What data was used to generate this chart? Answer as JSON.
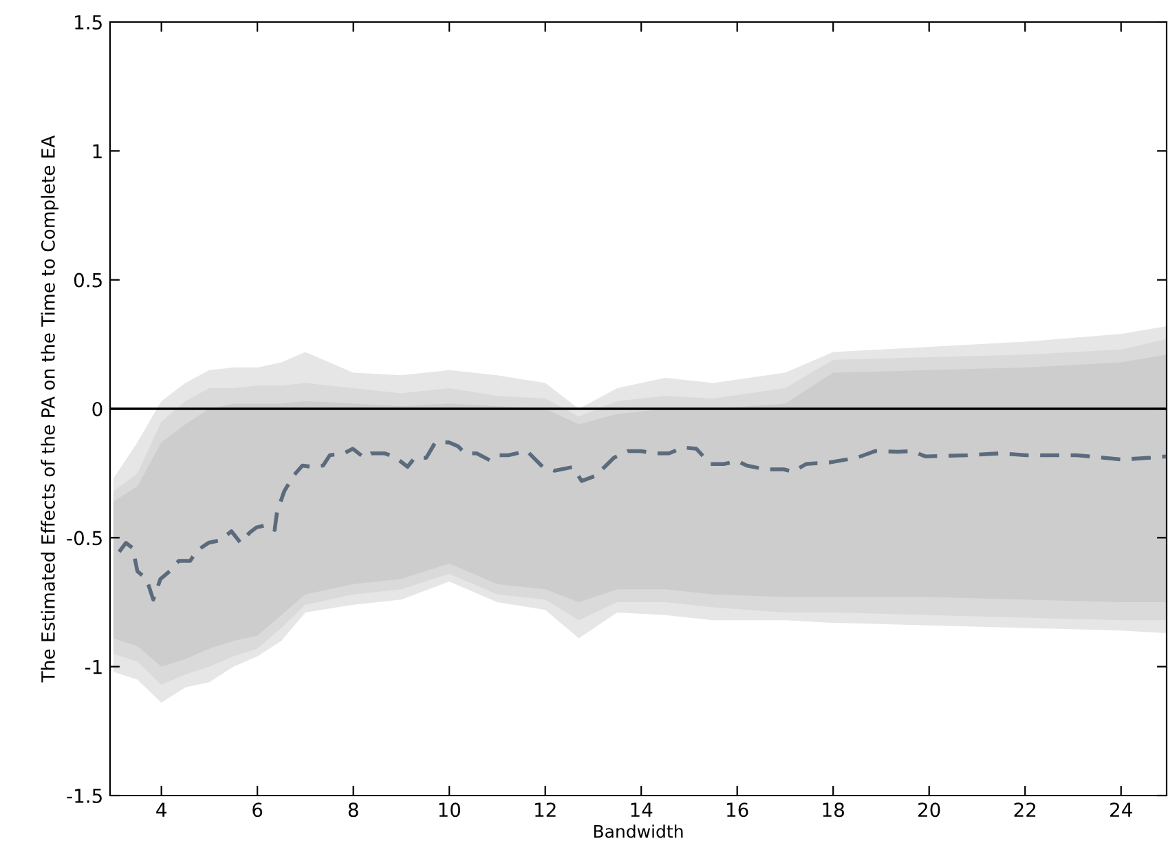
{
  "chart_data": {
    "type": "line",
    "xlabel": "Bandwidth",
    "ylabel": "The Estimated Effects of the PA on the Time to Complete EA",
    "xlim": [
      2.93,
      24.95
    ],
    "xticks": [
      4,
      6,
      8,
      10,
      12,
      14,
      16,
      18,
      20,
      22,
      24
    ],
    "ylim": [
      -1.5,
      1.5
    ],
    "yticks": [
      {
        "value": -1.5,
        "label": "-1.5"
      },
      {
        "value": -1,
        "label": "-1"
      },
      {
        "value": -0.5,
        "label": "-0.5"
      },
      0,
      0.5,
      1,
      1.5
    ],
    "grid": false,
    "line_style": "dashed",
    "marker": "none",
    "ref_lines": [
      {
        "axis": "y",
        "value": 0,
        "color": "#000000",
        "line_style": "solid"
      }
    ],
    "series": [
      {
        "type": "area",
        "color": "#e6e6e6",
        "values": [
          null,
          null,
          null,
          null,
          null,
          null,
          null,
          null,
          null,
          null,
          null,
          null,
          null,
          null,
          null,
          null,
          null,
          null,
          null,
          null,
          null,
          null,
          null,
          null
        ],
        "x": [
          3,
          3.5,
          4,
          4.5,
          5,
          5.5,
          6,
          6.5,
          7,
          8,
          9,
          10,
          11,
          12,
          12.7,
          13.5,
          14.5,
          15.5,
          17,
          18,
          20,
          22,
          24,
          24.95
        ],
        "lower": [
          -1.02,
          -1.05,
          -1.14,
          -1.08,
          -1.06,
          -1.0,
          -0.96,
          -0.9,
          -0.79,
          -0.76,
          -0.74,
          -0.67,
          -0.75,
          -0.78,
          -0.89,
          -0.79,
          -0.8,
          -0.82,
          -0.82,
          -0.83,
          -0.84,
          -0.85,
          -0.86,
          -0.87
        ],
        "upper": [
          -0.27,
          -0.13,
          0.03,
          0.1,
          0.15,
          0.16,
          0.16,
          0.18,
          0.22,
          0.14,
          0.13,
          0.15,
          0.13,
          0.1,
          0.0,
          0.08,
          0.12,
          0.1,
          0.14,
          0.22,
          0.24,
          0.26,
          0.29,
          0.32
        ]
      },
      {
        "type": "area",
        "color": "#dadada",
        "values": [
          null,
          null,
          null,
          null,
          null,
          null,
          null,
          null,
          null,
          null,
          null,
          null,
          null,
          null,
          null,
          null,
          null,
          null,
          null,
          null,
          null,
          null,
          null,
          null
        ],
        "x": [
          3,
          3.5,
          4,
          4.5,
          5,
          5.5,
          6,
          6.5,
          7,
          8,
          9,
          10,
          11,
          12,
          12.7,
          13.5,
          14.5,
          15.5,
          17,
          18,
          20,
          22,
          24,
          24.95
        ],
        "lower": [
          -0.95,
          -0.98,
          -1.07,
          -1.03,
          -1.0,
          -0.96,
          -0.93,
          -0.85,
          -0.76,
          -0.72,
          -0.7,
          -0.64,
          -0.72,
          -0.74,
          -0.82,
          -0.75,
          -0.75,
          -0.77,
          -0.79,
          -0.79,
          -0.8,
          -0.81,
          -0.82,
          -0.82
        ],
        "upper": [
          -0.32,
          -0.25,
          -0.05,
          0.03,
          0.08,
          0.08,
          0.09,
          0.09,
          0.1,
          0.08,
          0.06,
          0.08,
          0.05,
          0.04,
          -0.03,
          0.03,
          0.05,
          0.04,
          0.08,
          0.19,
          0.2,
          0.21,
          0.23,
          0.27
        ]
      },
      {
        "type": "area",
        "color": "#cdcdcd",
        "values": [
          null,
          null,
          null,
          null,
          null,
          null,
          null,
          null,
          null,
          null,
          null,
          null,
          null,
          null,
          null,
          null,
          null,
          null,
          null,
          null,
          null,
          null,
          null,
          null
        ],
        "x": [
          3,
          3.5,
          4,
          4.5,
          5,
          5.5,
          6,
          6.5,
          7,
          8,
          9,
          10,
          11,
          12,
          12.7,
          13.5,
          14.5,
          15.5,
          17,
          18,
          20,
          22,
          24,
          24.95
        ],
        "lower": [
          -0.89,
          -0.92,
          -1.0,
          -0.97,
          -0.93,
          -0.9,
          -0.88,
          -0.8,
          -0.72,
          -0.68,
          -0.66,
          -0.6,
          -0.68,
          -0.7,
          -0.75,
          -0.7,
          -0.7,
          -0.72,
          -0.73,
          -0.73,
          -0.73,
          -0.74,
          -0.75,
          -0.75
        ],
        "upper": [
          -0.36,
          -0.3,
          -0.13,
          -0.06,
          0.0,
          0.02,
          0.02,
          0.02,
          0.03,
          0.02,
          0.01,
          0.02,
          0.01,
          0.0,
          -0.06,
          -0.02,
          0.0,
          0.0,
          0.02,
          0.14,
          0.15,
          0.16,
          0.18,
          0.21
        ]
      },
      {
        "color": "#5b6b7d",
        "x": [
          3.12,
          3.26,
          3.4,
          3.5,
          3.69,
          3.83,
          3.98,
          4.17,
          4.36,
          4.6,
          4.74,
          4.98,
          5.22,
          5.46,
          5.65,
          5.84,
          5.98,
          6.22,
          6.36,
          6.41,
          6.56,
          6.75,
          6.94,
          7.13,
          7.37,
          7.51,
          7.8,
          7.99,
          8.23,
          8.37,
          8.66,
          8.89,
          9.13,
          9.28,
          9.52,
          9.71,
          9.99,
          10.18,
          10.33,
          10.57,
          10.85,
          11.04,
          11.23,
          11.62,
          11.95,
          12.19,
          12.57,
          12.76,
          13.05,
          13.43,
          13.72,
          14.0,
          14.29,
          14.58,
          14.87,
          15.15,
          15.44,
          15.72,
          16.01,
          16.2,
          16.58,
          16.97,
          17.16,
          17.44,
          17.92,
          18.49,
          18.88,
          19.35,
          19.64,
          19.93,
          20.79,
          21.46,
          22.03,
          22.5,
          23.08,
          23.65,
          24.03,
          24.94
        ],
        "values": [
          -0.555,
          -0.52,
          -0.54,
          -0.63,
          -0.66,
          -0.74,
          -0.66,
          -0.63,
          -0.59,
          -0.59,
          -0.55,
          -0.52,
          -0.51,
          -0.475,
          -0.52,
          -0.48,
          -0.46,
          -0.45,
          -0.47,
          -0.4,
          -0.32,
          -0.26,
          -0.22,
          -0.225,
          -0.22,
          -0.18,
          -0.173,
          -0.155,
          -0.19,
          -0.173,
          -0.173,
          -0.19,
          -0.225,
          -0.19,
          -0.19,
          -0.13,
          -0.13,
          -0.145,
          -0.173,
          -0.173,
          -0.2,
          -0.18,
          -0.18,
          -0.164,
          -0.226,
          -0.24,
          -0.226,
          -0.28,
          -0.26,
          -0.19,
          -0.164,
          -0.164,
          -0.173,
          -0.173,
          -0.15,
          -0.155,
          -0.214,
          -0.214,
          -0.203,
          -0.22,
          -0.235,
          -0.235,
          -0.244,
          -0.214,
          -0.208,
          -0.19,
          -0.164,
          -0.167,
          -0.164,
          -0.185,
          -0.18,
          -0.173,
          -0.18,
          -0.18,
          -0.18,
          -0.19,
          -0.197,
          -0.185
        ]
      }
    ]
  }
}
